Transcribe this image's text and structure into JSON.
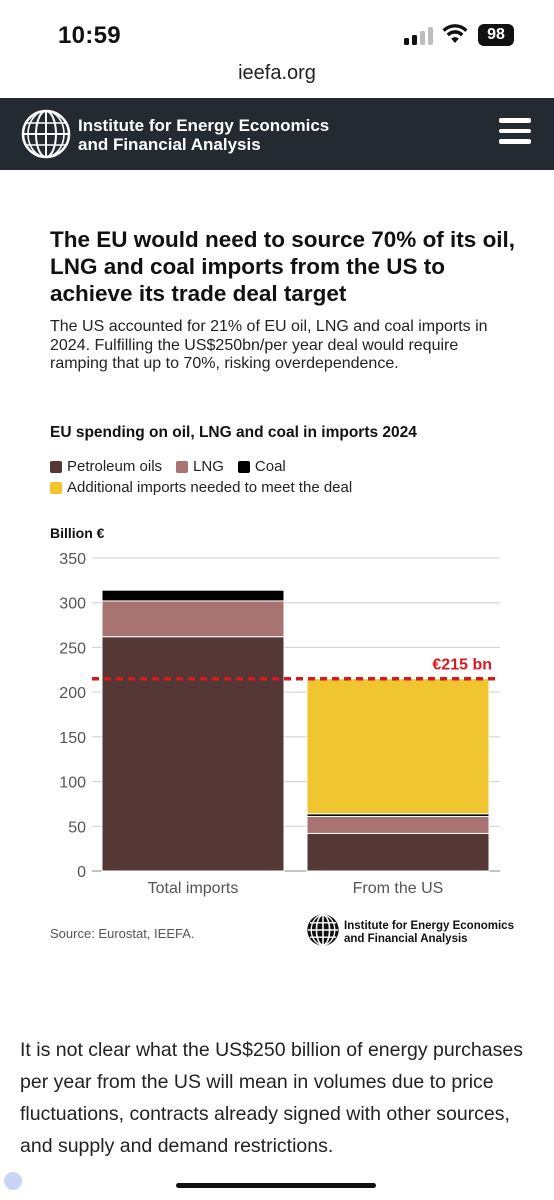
{
  "status": {
    "time": "10:59",
    "battery": "98"
  },
  "browser": {
    "url": "ieefa.org"
  },
  "header": {
    "org_line1": "Institute for Energy Economics",
    "org_line2": "and Financial Analysis"
  },
  "article": {
    "headline": "The EU would need to source 70% of its oil, LNG and coal imports from the US to achieve its trade deal target",
    "subtitle": "The US accounted for 21% of EU oil, LNG and coal imports in 2024. Fulfilling the US$250bn/per year deal would require ramping that up to 70%, risking overdependence.",
    "body": "It is not clear what the US$250 billion of energy purchases per year from the US will mean in volumes due to price fluctuations, contracts already signed with other sources, and supply and demand restrictions."
  },
  "chart_data": {
    "type": "bar",
    "stacked": true,
    "title": "EU spending on oil, LNG and coal in imports 2024",
    "ylabel": "Billion €",
    "ylim": [
      0,
      350
    ],
    "yticks": [
      0,
      50,
      100,
      150,
      200,
      250,
      300,
      350
    ],
    "categories": [
      "Total imports",
      "From the US"
    ],
    "series": [
      {
        "name": "Petroleum oils",
        "color": "#553736",
        "values": [
          262,
          42
        ]
      },
      {
        "name": "LNG",
        "color": "#a87472",
        "values": [
          40,
          19
        ]
      },
      {
        "name": "Coal",
        "color": "#000000",
        "values": [
          12,
          3
        ]
      },
      {
        "name": "Additional imports needed to meet the deal",
        "color": "#f0c630",
        "values": [
          0,
          151
        ]
      }
    ],
    "reference_line": {
      "value": 215,
      "label": "€215 bn",
      "color": "#d71920",
      "style": "dashed"
    },
    "grid": true,
    "legend_position": "top",
    "source": "Source: Eurostat, IEEFA.",
    "footer_org_line1": "Institute for Energy Economics",
    "footer_org_line2": "and Financial Analysis"
  }
}
